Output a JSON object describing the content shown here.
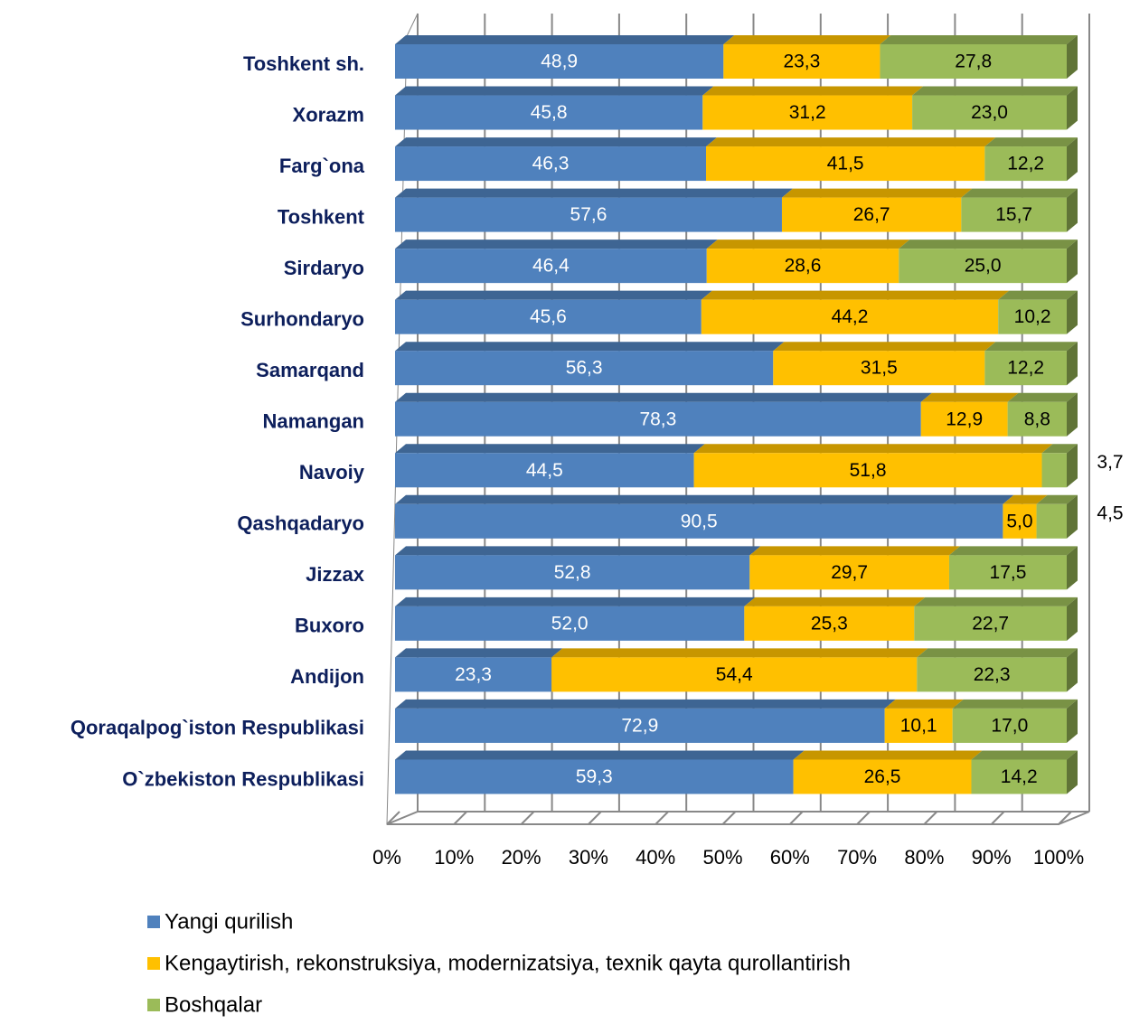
{
  "chart_data": {
    "type": "bar",
    "horizontal": true,
    "stacked": true,
    "categories": [
      "Toshkent sh.",
      "Xorazm",
      "Farg`ona",
      "Toshkent",
      "Sirdaryo",
      "Surhondaryo",
      "Samarqand",
      "Namangan",
      "Navoiy",
      "Qashqadaryo",
      "Jizzax",
      "Buxoro",
      "Andijon",
      "Qoraqalpog`iston Respublikasi",
      "O`zbekiston Respublikasi"
    ],
    "series": [
      {
        "name": "Yangi qurilish",
        "color": "#4f81bd",
        "values": [
          48.9,
          45.8,
          46.3,
          57.6,
          46.4,
          45.6,
          56.3,
          78.3,
          44.5,
          90.5,
          52.8,
          52.0,
          23.3,
          72.9,
          59.3
        ],
        "value_labels": [
          "48,9",
          "45,8",
          "46,3",
          "57,6",
          "46,4",
          "45,6",
          "56,3",
          "78,3",
          "44,5",
          "90,5",
          "52,8",
          "52,0",
          "23,3",
          "72,9",
          "59,3"
        ]
      },
      {
        "name": "Kengaytirish, rekonstruksiya, modernizatsiya, texnik qayta qurollantirish",
        "color": "#ffc000",
        "values": [
          23.3,
          31.2,
          41.5,
          26.7,
          28.6,
          44.2,
          31.5,
          12.9,
          51.8,
          5.0,
          29.7,
          25.3,
          54.4,
          10.1,
          26.5
        ],
        "value_labels": [
          "23,3",
          "31,2",
          "41,5",
          "26,7",
          "28,6",
          "44,2",
          "31,5",
          "12,9",
          "51,8",
          "5,0",
          "29,7",
          "25,3",
          "54,4",
          "10,1",
          "26,5"
        ]
      },
      {
        "name": "Boshqalar",
        "color": "#9bbb59",
        "values": [
          27.8,
          23.0,
          12.2,
          15.7,
          25.0,
          10.2,
          12.2,
          8.8,
          3.7,
          4.5,
          17.5,
          22.7,
          22.3,
          17.0,
          14.2
        ],
        "value_labels": [
          "27,8",
          "23,0",
          "12,2",
          "15,7",
          "25,0",
          "10,2",
          "12,2",
          "8,8",
          "3,7",
          "4,5",
          "17,5",
          "22,7",
          "22,3",
          "17,0",
          "14,2"
        ]
      }
    ],
    "xlim": [
      0,
      100
    ],
    "xticks": [
      {
        "value": 0,
        "label": "0%"
      },
      {
        "value": 10,
        "label": "10%"
      },
      {
        "value": 20,
        "label": "20%"
      },
      {
        "value": 30,
        "label": "30%"
      },
      {
        "value": 40,
        "label": "40%"
      },
      {
        "value": 50,
        "label": "50%"
      },
      {
        "value": 60,
        "label": "60%"
      },
      {
        "value": 70,
        "label": "70%"
      },
      {
        "value": 80,
        "label": "80%"
      },
      {
        "value": 90,
        "label": "90%"
      },
      {
        "value": 100,
        "label": "100%"
      }
    ],
    "grid": true,
    "legend": "bottom"
  }
}
